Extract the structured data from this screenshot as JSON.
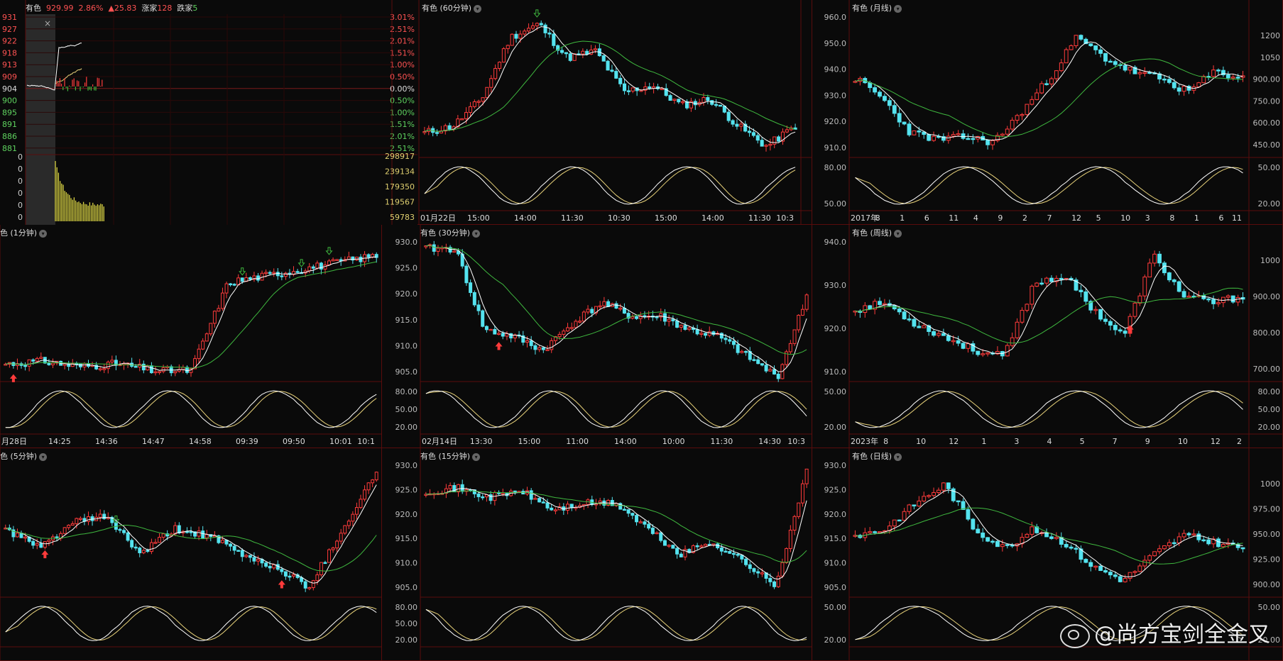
{
  "timeshare": {
    "name": "有色",
    "price": "929.99",
    "pct": "2.86%",
    "chg": "▲25.83",
    "up_label": "涨家",
    "up_count": "128",
    "down_label": "跌家",
    "down_count": "5",
    "close_glyph": "×",
    "price_ticks": [
      "931",
      "927",
      "922",
      "918",
      "913",
      "909",
      "904",
      "900",
      "895",
      "891",
      "886",
      "881"
    ],
    "pct_ticks": [
      "3.01%",
      "2.51%",
      "2.01%",
      "1.51%",
      "1.00%",
      "0.50%",
      "0.00%",
      "0.50%",
      "1.00%",
      "1.51%",
      "2.01%",
      "2.51%"
    ],
    "vol_left_ticks": [
      "0",
      "0",
      "0",
      "0",
      "0",
      "0"
    ],
    "vol_right_ticks": [
      "298917",
      "239134",
      "179350",
      "119567",
      "59783"
    ]
  },
  "panels": {
    "m60": {
      "title": "有色 (60分钟)",
      "ylabels": [],
      "kdj_labels": [],
      "xlabels": [
        "01月22日",
        "15:00",
        "14:00",
        "11:30",
        "10:30",
        "15:00",
        "14:00",
        "11:30",
        "10:3"
      ]
    },
    "monthly": {
      "title": "有色 (月线)",
      "ylabels": [
        "960.0",
        "950.0",
        "940.0",
        "930.0",
        "920.0",
        "910.0"
      ],
      "right_labels": [
        "1200",
        "1050",
        "900.00",
        "750.00",
        "600.00",
        "450.00"
      ],
      "kdj_labels": [
        "80.00",
        "50.00"
      ],
      "kdj_right": [
        "50.00",
        "20.00"
      ],
      "xlabels": [
        "2017年",
        "8",
        "1",
        "6",
        "11",
        "4",
        "9",
        "2",
        "7",
        "12",
        "5",
        "10",
        "3",
        "8",
        "1",
        "6",
        "11"
      ]
    },
    "m1": {
      "title": "色 (1分钟)",
      "ylabels": [],
      "kdj_labels": [],
      "xlabels": [
        "月28日",
        "14:25",
        "14:36",
        "14:47",
        "14:58",
        "09:39",
        "09:50",
        "10:01",
        "10:1"
      ]
    },
    "m30": {
      "title": "有色 (30分钟)",
      "ylabels": [
        "930.0",
        "925.0",
        "920.0",
        "915.0",
        "910.0",
        "905.0"
      ],
      "kdj_labels": [
        "80.00",
        "50.00",
        "20.00"
      ],
      "xlabels": [
        "02月14日",
        "13:30",
        "15:00",
        "11:00",
        "14:00",
        "10:00",
        "11:30",
        "14:30",
        "10:3"
      ]
    },
    "weekly": {
      "title": "有色 (周线)",
      "ylabels": [
        "940.0",
        "930.0",
        "920.0",
        "910.0"
      ],
      "right_labels": [
        "1000",
        "900.00",
        "800.00",
        "700.00"
      ],
      "kdj_labels": [
        "50.00",
        "20.00"
      ],
      "kdj_right": [
        "80.00",
        "50.00",
        "20.00"
      ],
      "xlabels": [
        "2023年",
        "8",
        "10",
        "12",
        "1",
        "3",
        "4",
        "5",
        "7",
        "9",
        "10",
        "12",
        "2"
      ]
    },
    "m5": {
      "title": "色 (5分钟)",
      "ylabels": [],
      "kdj_labels": [],
      "xlabels": []
    },
    "m15": {
      "title": "有色 (15分钟)",
      "ylabels": [
        "930.0",
        "925.0",
        "920.0",
        "915.0",
        "910.0",
        "905.0"
      ],
      "kdj_labels": [
        "80.00",
        "50.00",
        "20.00"
      ],
      "xlabels": []
    },
    "daily": {
      "title": "有色 (日线)",
      "ylabels": [
        "930.0",
        "925.0",
        "920.0",
        "915.0",
        "910.0",
        "905.0"
      ],
      "right_labels": [
        "1000",
        "975.00",
        "950.00",
        "925.00",
        "900.00"
      ],
      "kdj_labels": [
        "50.00",
        "20.00"
      ],
      "kdj_right": [
        "50.00",
        "20.00"
      ],
      "xlabels": []
    }
  },
  "watermark": "@尚方宝剑全金叉",
  "colors": {
    "up": "#ff3b3b",
    "down": "#54e3ef",
    "ma_fast": "#ffffff",
    "ma_slow": "#3fb83f",
    "kdj_k": "#ffffff",
    "kdj_d": "#e8d27a",
    "grid": "#5a0c0c",
    "vol": "#d8d243",
    "vol_dn": "#3fb83f",
    "axis_red": "#ff5252",
    "axis_grn": "#5fd35f"
  }
}
